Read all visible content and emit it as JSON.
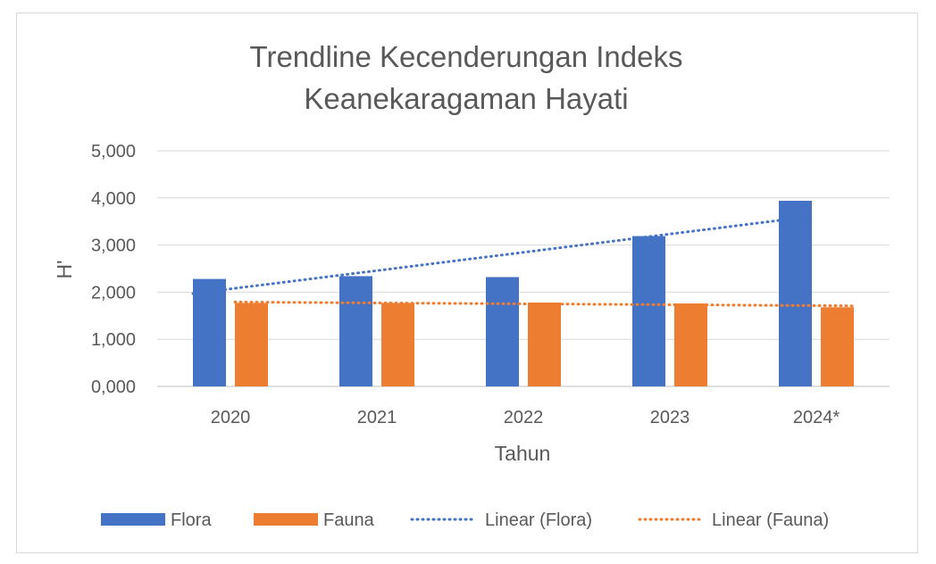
{
  "chart_data": {
    "type": "bar",
    "title": [
      "Trendline Kecenderungan Indeks",
      "Keanekaragaman Hayati"
    ],
    "xlabel": "Tahun",
    "ylabel": "H'",
    "categories": [
      "2020",
      "2021",
      "2022",
      "2023",
      "2024*"
    ],
    "ylim": [
      0,
      5
    ],
    "yticks": [
      {
        "value": 0,
        "label": "0,000"
      },
      {
        "value": 1,
        "label": "1,000"
      },
      {
        "value": 2,
        "label": "2,000"
      },
      {
        "value": 3,
        "label": "3,000"
      },
      {
        "value": 4,
        "label": "4,000"
      },
      {
        "value": 5,
        "label": "5,000"
      }
    ],
    "grid": true,
    "legend_position": "bottom",
    "series": [
      {
        "name": "Flora",
        "color": "#4472c4",
        "values": [
          2.28,
          2.34,
          2.32,
          3.19,
          3.94
        ]
      },
      {
        "name": "Fauna",
        "color": "#ed7d31",
        "values": [
          1.77,
          1.77,
          1.78,
          1.76,
          1.68
        ]
      }
    ],
    "trendlines": [
      {
        "name": "Linear (Flora)",
        "series": "Flora",
        "color": "#4472c4",
        "start": 1.97,
        "end": 3.61
      },
      {
        "name": "Linear (Fauna)",
        "series": "Fauna",
        "color": "#ed7d31",
        "start": 1.79,
        "end": 1.71
      }
    ]
  }
}
